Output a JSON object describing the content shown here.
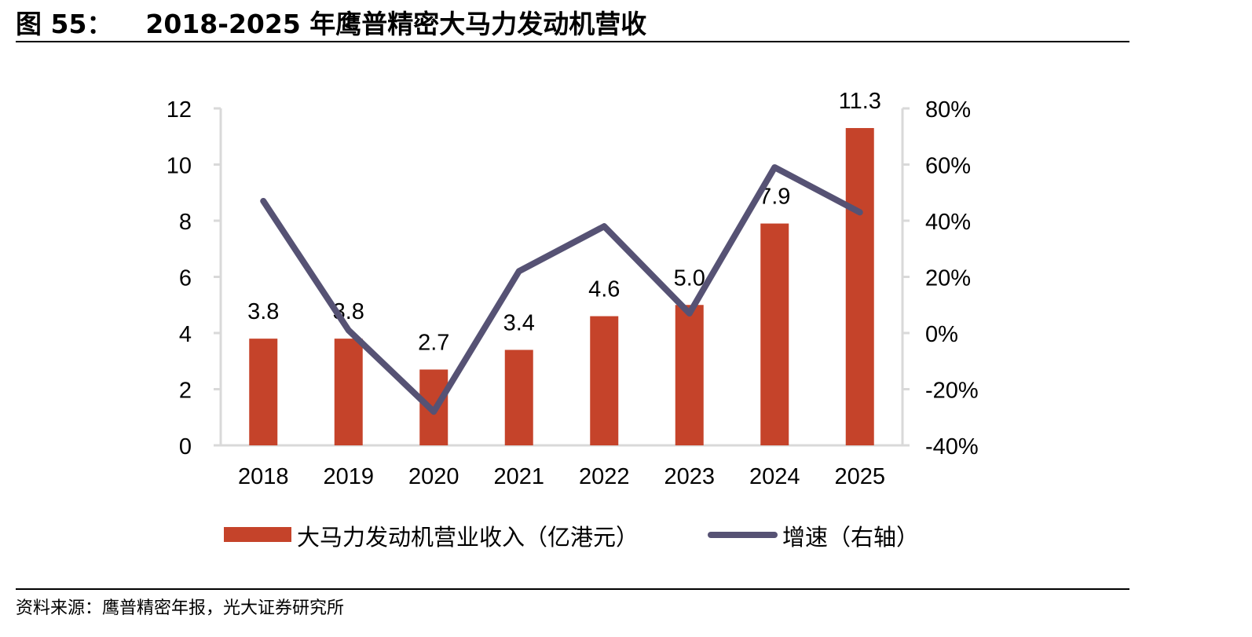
{
  "figure": {
    "number": "图 55：",
    "title": "2018-2025 年鹰普精密大马力发动机营收"
  },
  "source": "资料来源：鹰普精密年报，光大证券研究所",
  "colors": {
    "bar": "#C5432A",
    "line": "#565274",
    "axis": "#D9D9D9"
  },
  "chart_data": {
    "type": "bar",
    "categories": [
      "2018",
      "2019",
      "2020",
      "2021",
      "2022",
      "2023",
      "2024",
      "2025"
    ],
    "series": [
      {
        "name": "大马力发动机营业收入（亿港元）",
        "type": "bar",
        "axis": "left",
        "values": [
          3.8,
          3.8,
          2.7,
          3.4,
          4.6,
          5.0,
          7.9,
          11.3
        ],
        "labels": [
          "3.8",
          "3.8",
          "2.7",
          "3.4",
          "4.6",
          "5.0",
          "7.9",
          "11.3"
        ]
      },
      {
        "name": "增速（右轴）",
        "type": "line",
        "axis": "right",
        "values": [
          0.47,
          0.01,
          -0.28,
          0.22,
          0.38,
          0.07,
          0.59,
          0.43
        ]
      }
    ],
    "y_left": {
      "ylim": [
        0,
        12
      ],
      "ticks": [
        0,
        2,
        4,
        6,
        8,
        10,
        12
      ],
      "tick_labels": [
        "0",
        "2",
        "4",
        "6",
        "8",
        "10",
        "12"
      ]
    },
    "y_right": {
      "ylim": [
        -0.4,
        0.8
      ],
      "ticks": [
        -0.4,
        -0.2,
        0,
        0.2,
        0.4,
        0.6,
        0.8
      ],
      "tick_labels": [
        "-40%",
        "-20%",
        "0%",
        "20%",
        "40%",
        "60%",
        "80%"
      ]
    },
    "grid": false,
    "legend_position": "bottom-center"
  }
}
